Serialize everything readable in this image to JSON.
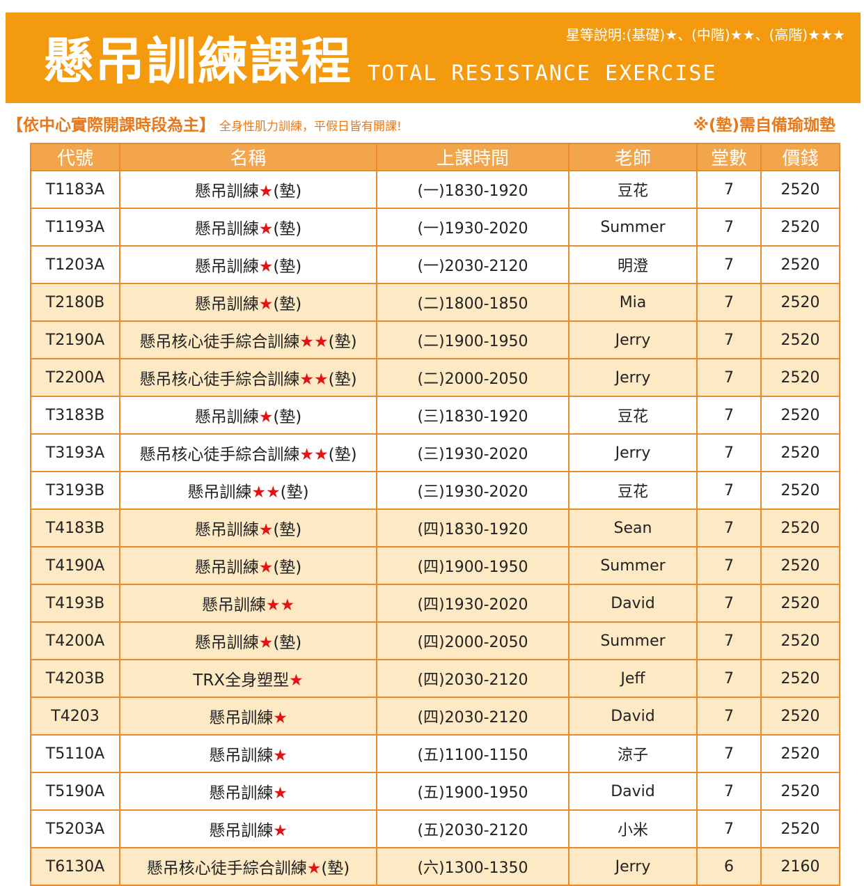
{
  "banner": {
    "title": "懸吊訓練課程",
    "subtitle": "TOTAL RESISTANCE EXERCISE",
    "legend": "星等說明:(基礎)★、(中階)★★、(高階)★★★"
  },
  "notes": {
    "main": "【依中心實際開課時段為主】",
    "sub": "全身性肌力訓練，平假日皆有開課!",
    "right": "※(墊)需自備瑜珈墊"
  },
  "colors": {
    "banner": "#f39a0f",
    "header": "#f3a54b",
    "border": "#ea8a2a",
    "row_alt": "#fde9c3",
    "star": "#e01414"
  },
  "table": {
    "headers": [
      "代號",
      "名稱",
      "上課時間",
      "老師",
      "堂數",
      "價錢"
    ],
    "rows": [
      {
        "code": "T1183A",
        "name": "懸吊訓練",
        "stars": "★",
        "mat": "(墊)",
        "time": "(一)1830-1920",
        "teacher": "豆花",
        "sessions": "7",
        "price": "2520",
        "shade": "plain"
      },
      {
        "code": "T1193A",
        "name": "懸吊訓練",
        "stars": "★",
        "mat": "(墊)",
        "time": "(一)1930-2020",
        "teacher": "Summer",
        "sessions": "7",
        "price": "2520",
        "shade": "plain"
      },
      {
        "code": "T1203A",
        "name": "懸吊訓練",
        "stars": "★",
        "mat": "(墊)",
        "time": "(一)2030-2120",
        "teacher": "明澄",
        "sessions": "7",
        "price": "2520",
        "shade": "plain"
      },
      {
        "code": "T2180B",
        "name": "懸吊訓練",
        "stars": "★",
        "mat": "(墊)",
        "time": "(二)1800-1850",
        "teacher": "Mia",
        "sessions": "7",
        "price": "2520",
        "shade": "alt"
      },
      {
        "code": "T2190A",
        "name": "懸吊核心徒手綜合訓練",
        "stars": "★★",
        "mat": "(墊)",
        "time": "(二)1900-1950",
        "teacher": "Jerry",
        "sessions": "7",
        "price": "2520",
        "shade": "alt"
      },
      {
        "code": "T2200A",
        "name": "懸吊核心徒手綜合訓練",
        "stars": "★★",
        "mat": "(墊)",
        "time": "(二)2000-2050",
        "teacher": "Jerry",
        "sessions": "7",
        "price": "2520",
        "shade": "alt"
      },
      {
        "code": "T3183B",
        "name": "懸吊訓練",
        "stars": "★",
        "mat": "(墊)",
        "time": "(三)1830-1920",
        "teacher": "豆花",
        "sessions": "7",
        "price": "2520",
        "shade": "plain"
      },
      {
        "code": "T3193A",
        "name": "懸吊核心徒手綜合訓練",
        "stars": "★★",
        "mat": "(墊)",
        "time": "(三)1930-2020",
        "teacher": "Jerry",
        "sessions": "7",
        "price": "2520",
        "shade": "plain"
      },
      {
        "code": "T3193B",
        "name": "懸吊訓練",
        "stars": "★★",
        "mat": "(墊)",
        "time": "(三)1930-2020",
        "teacher": "豆花",
        "sessions": "7",
        "price": "2520",
        "shade": "plain"
      },
      {
        "code": "T4183B",
        "name": "懸吊訓練",
        "stars": "★",
        "mat": "(墊)",
        "time": "(四)1830-1920",
        "teacher": "Sean",
        "sessions": "7",
        "price": "2520",
        "shade": "alt"
      },
      {
        "code": "T4190A",
        "name": "懸吊訓練",
        "stars": "★",
        "mat": "(墊)",
        "time": "(四)1900-1950",
        "teacher": "Summer",
        "sessions": "7",
        "price": "2520",
        "shade": "alt"
      },
      {
        "code": "T4193B",
        "name": "懸吊訓練",
        "stars": "★★",
        "mat": "",
        "time": "(四)1930-2020",
        "teacher": "David",
        "sessions": "7",
        "price": "2520",
        "shade": "alt"
      },
      {
        "code": "T4200A",
        "name": "懸吊訓練",
        "stars": "★",
        "mat": "(墊)",
        "time": "(四)2000-2050",
        "teacher": "Summer",
        "sessions": "7",
        "price": "2520",
        "shade": "alt"
      },
      {
        "code": "T4203B",
        "name": "TRX全身塑型",
        "stars": "★",
        "mat": "",
        "time": "(四)2030-2120",
        "teacher": "Jeff",
        "sessions": "7",
        "price": "2520",
        "shade": "alt"
      },
      {
        "code": "T4203",
        "name": "懸吊訓練",
        "stars": "★",
        "mat": "",
        "time": "(四)2030-2120",
        "teacher": "David",
        "sessions": "7",
        "price": "2520",
        "shade": "alt"
      },
      {
        "code": "T5110A",
        "name": "懸吊訓練",
        "stars": "★",
        "mat": "",
        "time": "(五)1100-1150",
        "teacher": "涼子",
        "sessions": "7",
        "price": "2520",
        "shade": "plain"
      },
      {
        "code": "T5190A",
        "name": "懸吊訓練",
        "stars": "★",
        "mat": "",
        "time": "(五)1900-1950",
        "teacher": "David",
        "sessions": "7",
        "price": "2520",
        "shade": "plain"
      },
      {
        "code": "T5203A",
        "name": "懸吊訓練",
        "stars": "★",
        "mat": "",
        "time": "(五)2030-2120",
        "teacher": "小米",
        "sessions": "7",
        "price": "2520",
        "shade": "plain"
      },
      {
        "code": "T6130A",
        "name": "懸吊核心徒手綜合訓練",
        "stars": "★",
        "mat": "(墊)",
        "time": "(六)1300-1350",
        "teacher": "Jerry",
        "sessions": "6",
        "price": "2160",
        "shade": "alt"
      }
    ]
  }
}
